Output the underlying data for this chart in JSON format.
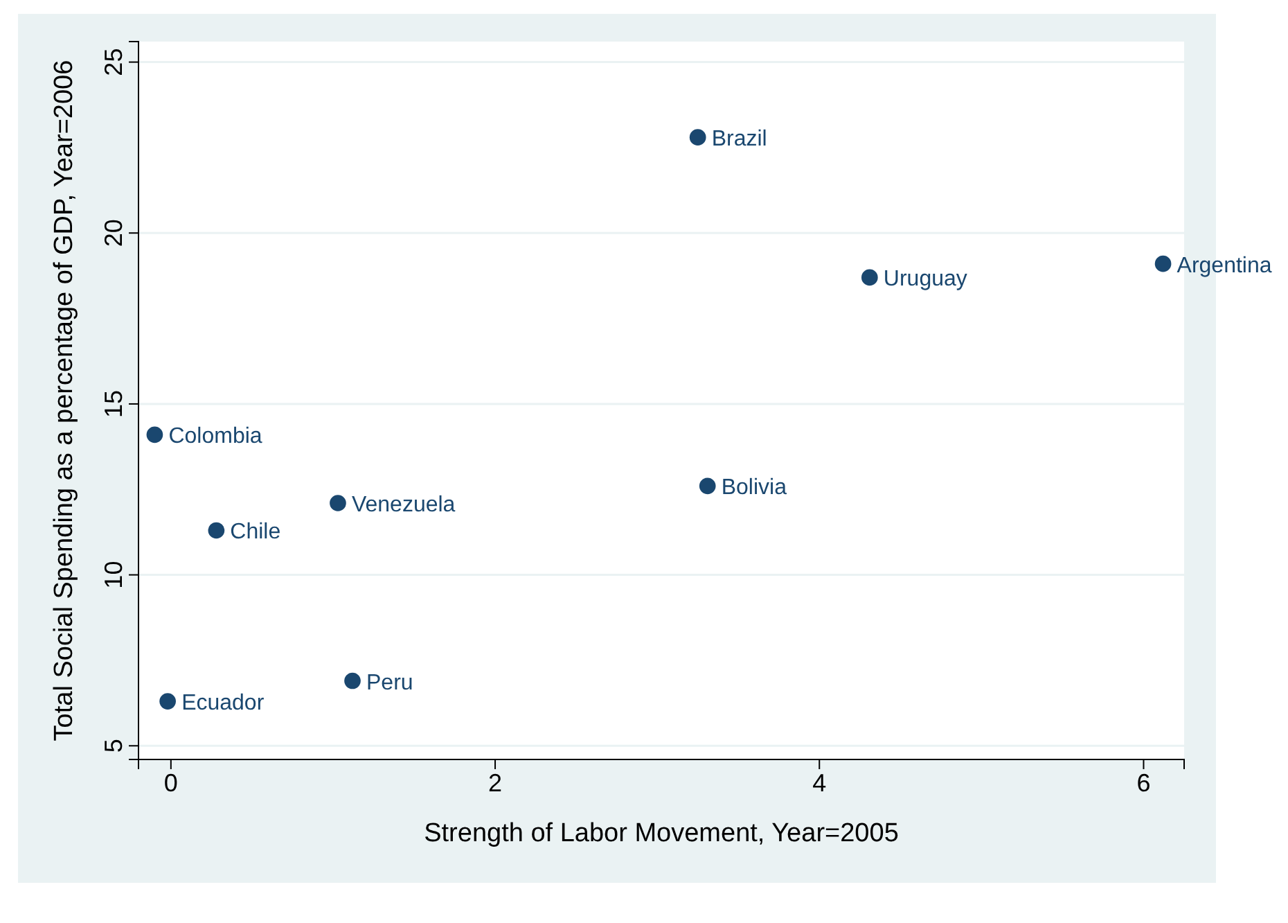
{
  "chart_data": {
    "type": "scatter",
    "xlabel": "Strength of Labor Movement, Year=2005",
    "ylabel": "Total Social Spending as a percentage of GDP, Year=2006",
    "x": [
      3.25,
      4.31,
      6.12,
      -0.1,
      3.31,
      1.03,
      0.28,
      1.12,
      -0.02
    ],
    "series": [
      {
        "color": "#1a476f",
        "values": [
          22.8,
          18.7,
          19.1,
          14.1,
          12.6,
          12.1,
          11.3,
          6.9,
          6.3
        ]
      }
    ],
    "annotations": [
      {
        "text": "Brazil",
        "x": 3.25,
        "y": 22.8
      },
      {
        "text": "Uruguay",
        "x": 4.31,
        "y": 18.7
      },
      {
        "text": "Argentina",
        "x": 6.12,
        "y": 19.1
      },
      {
        "text": "Colombia",
        "x": -0.1,
        "y": 14.1
      },
      {
        "text": "Bolivia",
        "x": 3.31,
        "y": 12.6
      },
      {
        "text": "Venezuela",
        "x": 1.03,
        "y": 12.1
      },
      {
        "text": "Chile",
        "x": 0.28,
        "y": 11.3
      },
      {
        "text": "Peru",
        "x": 1.12,
        "y": 6.9
      },
      {
        "text": "Ecuador",
        "x": -0.02,
        "y": 6.3
      }
    ],
    "xlim": [
      -0.2,
      6.25
    ],
    "ylim": [
      4.6,
      25.6
    ],
    "xticks": [
      0,
      2,
      4,
      6
    ],
    "yticks": [
      5,
      10,
      15,
      20,
      25
    ],
    "grid": "y",
    "marker": "circle"
  }
}
